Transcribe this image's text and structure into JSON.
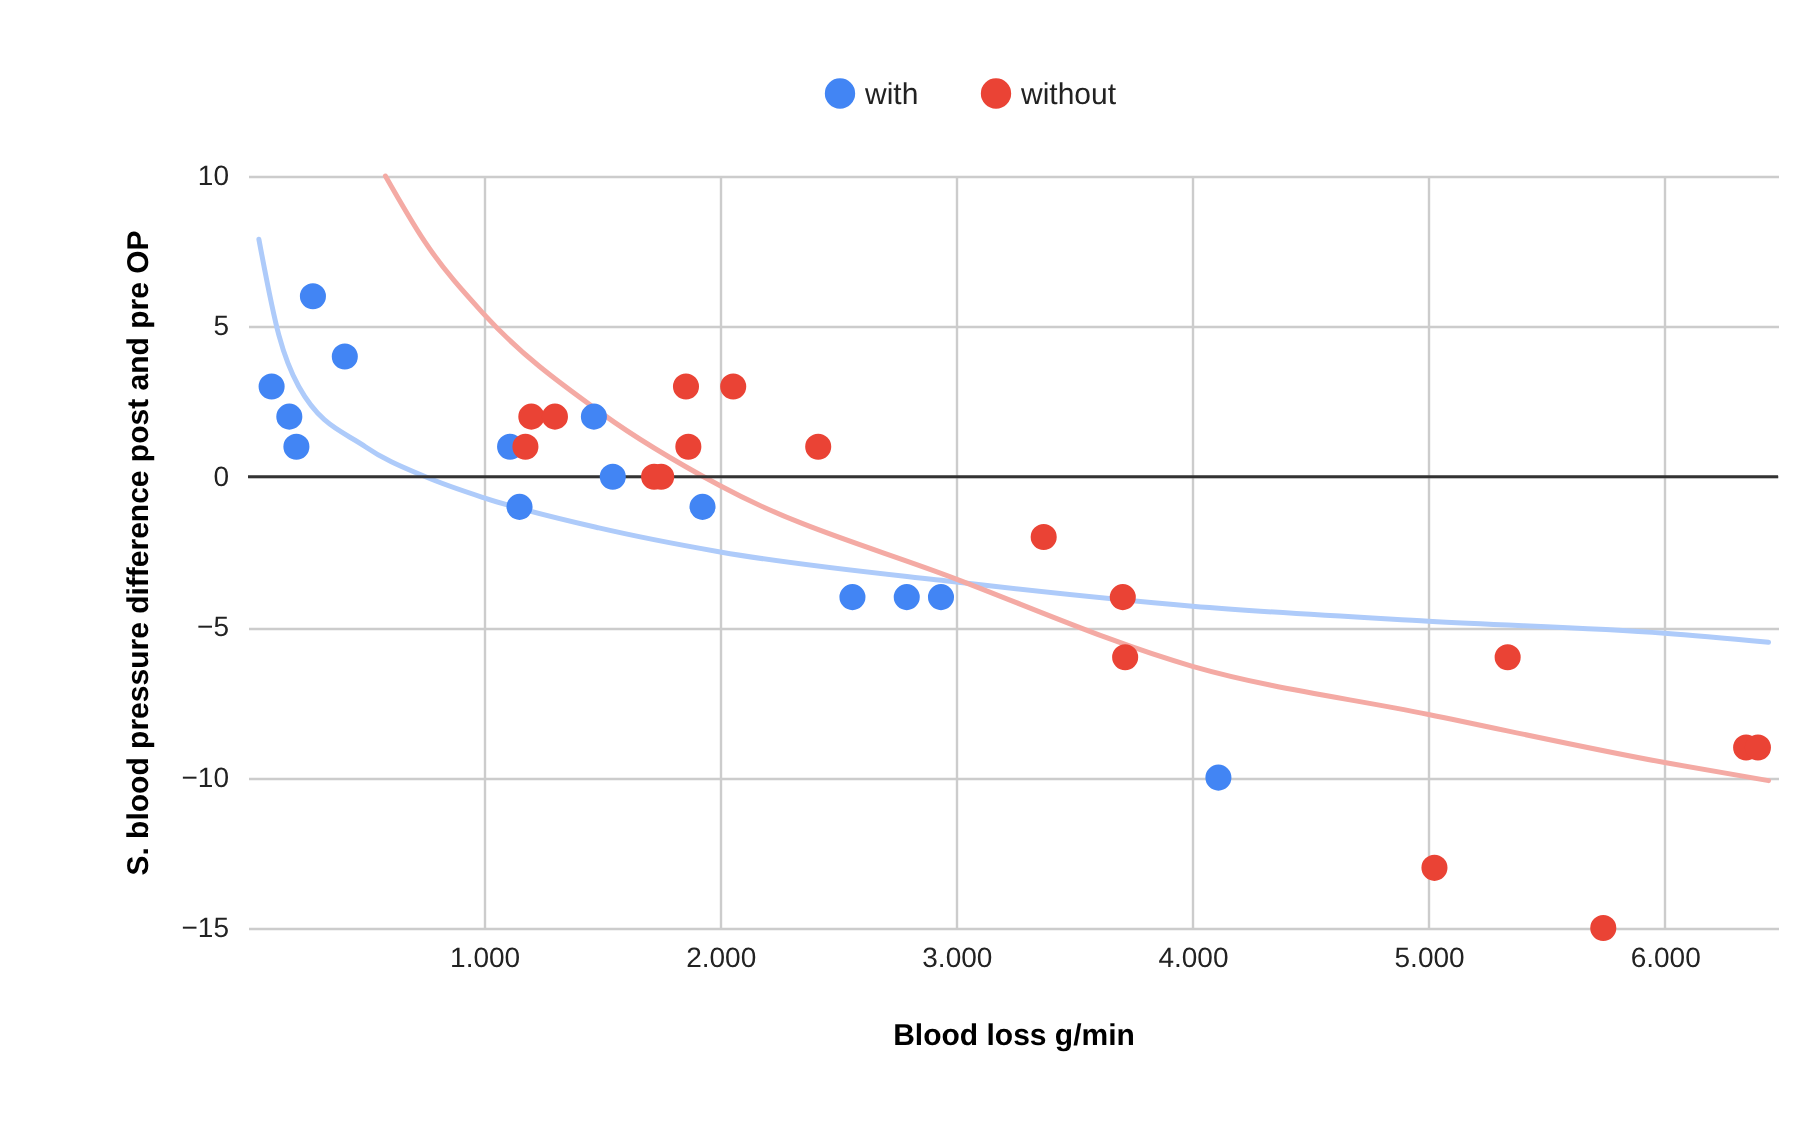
{
  "chart_data": {
    "type": "scatter",
    "xlabel": "Blood loss g/min",
    "ylabel": "S. blood pressure difference post and pre OP",
    "xlim": [
      0,
      6480
    ],
    "ylim": [
      -15,
      10
    ],
    "xticks": [
      {
        "value": 1000,
        "label": "1.000"
      },
      {
        "value": 2000,
        "label": "2.000"
      },
      {
        "value": 3000,
        "label": "3.000"
      },
      {
        "value": 4000,
        "label": "4.000"
      },
      {
        "value": 5000,
        "label": "5.000"
      },
      {
        "value": 6000,
        "label": "6.000"
      }
    ],
    "yticks": [
      -15,
      -10,
      -5,
      0,
      5,
      10
    ],
    "grid": true,
    "legend": "top",
    "ref_lines": [
      {
        "axis": "y",
        "value": 0,
        "color": "#333333"
      }
    ],
    "series": [
      {
        "name": "with",
        "type": "scatter",
        "marker": "circle",
        "color": "#4285f4",
        "x": [
          100,
          175,
          205,
          275,
          410,
          1110,
          1150,
          1465,
          1545,
          1925,
          2560,
          2790,
          2935,
          4110
        ],
        "values": [
          3,
          2,
          1,
          6,
          4,
          1,
          -1,
          2,
          0,
          -1,
          -4,
          -4,
          -4,
          -10
        ]
      },
      {
        "name": "without",
        "type": "scatter",
        "marker": "circle",
        "color": "#ea4335",
        "x": [
          1175,
          1200,
          1300,
          1720,
          1750,
          1855,
          1865,
          2055,
          2415,
          3370,
          3705,
          3715,
          5025,
          5335,
          5740,
          6345,
          6395
        ],
        "values": [
          1,
          2,
          2,
          0,
          0,
          3,
          1,
          3,
          1,
          -2,
          -4,
          -6,
          -13,
          -6,
          -15,
          -9,
          -9
        ]
      },
      {
        "type": "line",
        "marker": "none",
        "color": "#aecbfa",
        "x": [
          46,
          131,
          215,
          497,
          752,
          1000,
          1486,
          2000,
          3000,
          4000,
          5000,
          6000,
          6440
        ],
        "values": [
          7.9,
          4.7,
          3.0,
          1.0,
          0,
          -0.7,
          -1.7,
          -2.5,
          -3.5,
          -4.3,
          -4.8,
          -5.2,
          -5.5
        ]
      },
      {
        "type": "line",
        "marker": "none",
        "color": "#f4aaa4",
        "x": [
          582,
          750,
          1000,
          1500,
          2000,
          3000,
          4000,
          5000,
          6000,
          6440
        ],
        "values": [
          10,
          7.8,
          5.4,
          2.1,
          -0.3,
          -3.4,
          -6.3,
          -7.9,
          -9.5,
          -10.1
        ]
      }
    ]
  }
}
